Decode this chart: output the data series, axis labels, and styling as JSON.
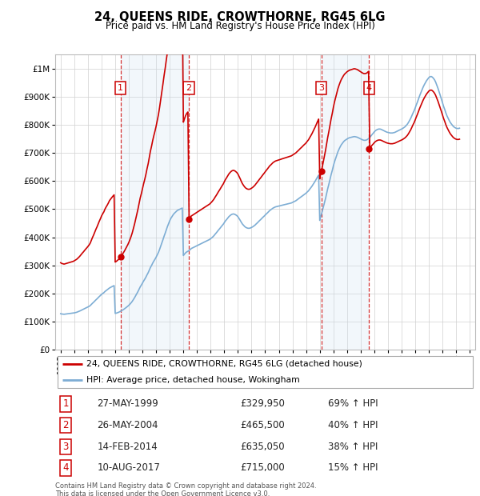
{
  "title": "24, QUEENS RIDE, CROWTHORNE, RG45 6LG",
  "subtitle": "Price paid vs. HM Land Registry's House Price Index (HPI)",
  "red_label": "24, QUEENS RIDE, CROWTHORNE, RG45 6LG (detached house)",
  "blue_label": "HPI: Average price, detached house, Wokingham",
  "footer": "Contains HM Land Registry data © Crown copyright and database right 2024.\nThis data is licensed under the Open Government Licence v3.0.",
  "ylim": [
    0,
    1050000
  ],
  "yticks": [
    0,
    100000,
    200000,
    300000,
    400000,
    500000,
    600000,
    700000,
    800000,
    900000,
    1000000
  ],
  "xlim_start": 1994.6,
  "xlim_end": 2025.4,
  "sale_dates": [
    1999.4,
    2004.4,
    2014.12,
    2017.61
  ],
  "sale_prices": [
    329950,
    465500,
    635050,
    715000
  ],
  "sale_labels": [
    "1",
    "2",
    "3",
    "4"
  ],
  "transactions": [
    {
      "num": "1",
      "date": "27-MAY-1999",
      "price": "£329,950",
      "change": "69% ↑ HPI"
    },
    {
      "num": "2",
      "date": "26-MAY-2004",
      "price": "£465,500",
      "change": "40% ↑ HPI"
    },
    {
      "num": "3",
      "date": "14-FEB-2014",
      "price": "£635,050",
      "change": "38% ↑ HPI"
    },
    {
      "num": "4",
      "date": "10-AUG-2017",
      "price": "£715,000",
      "change": "15% ↑ HPI"
    }
  ],
  "hpi_years": [
    1995.0,
    1995.08,
    1995.17,
    1995.25,
    1995.33,
    1995.42,
    1995.5,
    1995.58,
    1995.67,
    1995.75,
    1995.83,
    1995.92,
    1996.0,
    1996.08,
    1996.17,
    1996.25,
    1996.33,
    1996.42,
    1996.5,
    1996.58,
    1996.67,
    1996.75,
    1996.83,
    1996.92,
    1997.0,
    1997.08,
    1997.17,
    1997.25,
    1997.33,
    1997.42,
    1997.5,
    1997.58,
    1997.67,
    1997.75,
    1997.83,
    1997.92,
    1998.0,
    1998.08,
    1998.17,
    1998.25,
    1998.33,
    1998.42,
    1998.5,
    1998.58,
    1998.67,
    1998.75,
    1998.83,
    1998.92,
    1999.0,
    1999.08,
    1999.17,
    1999.25,
    1999.33,
    1999.42,
    1999.5,
    1999.58,
    1999.67,
    1999.75,
    1999.83,
    1999.92,
    2000.0,
    2000.08,
    2000.17,
    2000.25,
    2000.33,
    2000.42,
    2000.5,
    2000.58,
    2000.67,
    2000.75,
    2000.83,
    2000.92,
    2001.0,
    2001.08,
    2001.17,
    2001.25,
    2001.33,
    2001.42,
    2001.5,
    2001.58,
    2001.67,
    2001.75,
    2001.83,
    2001.92,
    2002.0,
    2002.08,
    2002.17,
    2002.25,
    2002.33,
    2002.42,
    2002.5,
    2002.58,
    2002.67,
    2002.75,
    2002.83,
    2002.92,
    2003.0,
    2003.08,
    2003.17,
    2003.25,
    2003.33,
    2003.42,
    2003.5,
    2003.58,
    2003.67,
    2003.75,
    2003.83,
    2003.92,
    2004.0,
    2004.08,
    2004.17,
    2004.25,
    2004.33,
    2004.42,
    2004.5,
    2004.58,
    2004.67,
    2004.75,
    2004.83,
    2004.92,
    2005.0,
    2005.08,
    2005.17,
    2005.25,
    2005.33,
    2005.42,
    2005.5,
    2005.58,
    2005.67,
    2005.75,
    2005.83,
    2005.92,
    2006.0,
    2006.08,
    2006.17,
    2006.25,
    2006.33,
    2006.42,
    2006.5,
    2006.58,
    2006.67,
    2006.75,
    2006.83,
    2006.92,
    2007.0,
    2007.08,
    2007.17,
    2007.25,
    2007.33,
    2007.42,
    2007.5,
    2007.58,
    2007.67,
    2007.75,
    2007.83,
    2007.92,
    2008.0,
    2008.08,
    2008.17,
    2008.25,
    2008.33,
    2008.42,
    2008.5,
    2008.58,
    2008.67,
    2008.75,
    2008.83,
    2008.92,
    2009.0,
    2009.08,
    2009.17,
    2009.25,
    2009.33,
    2009.42,
    2009.5,
    2009.58,
    2009.67,
    2009.75,
    2009.83,
    2009.92,
    2010.0,
    2010.08,
    2010.17,
    2010.25,
    2010.33,
    2010.42,
    2010.5,
    2010.58,
    2010.67,
    2010.75,
    2010.83,
    2010.92,
    2011.0,
    2011.08,
    2011.17,
    2011.25,
    2011.33,
    2011.42,
    2011.5,
    2011.58,
    2011.67,
    2011.75,
    2011.83,
    2011.92,
    2012.0,
    2012.08,
    2012.17,
    2012.25,
    2012.33,
    2012.42,
    2012.5,
    2012.58,
    2012.67,
    2012.75,
    2012.83,
    2012.92,
    2013.0,
    2013.08,
    2013.17,
    2013.25,
    2013.33,
    2013.42,
    2013.5,
    2013.58,
    2013.67,
    2013.75,
    2013.83,
    2013.92,
    2014.0,
    2014.08,
    2014.17,
    2014.25,
    2014.33,
    2014.42,
    2014.5,
    2014.58,
    2014.67,
    2014.75,
    2014.83,
    2014.92,
    2015.0,
    2015.08,
    2015.17,
    2015.25,
    2015.33,
    2015.42,
    2015.5,
    2015.58,
    2015.67,
    2015.75,
    2015.83,
    2015.92,
    2016.0,
    2016.08,
    2016.17,
    2016.25,
    2016.33,
    2016.42,
    2016.5,
    2016.58,
    2016.67,
    2016.75,
    2016.83,
    2016.92,
    2017.0,
    2017.08,
    2017.17,
    2017.25,
    2017.33,
    2017.42,
    2017.5,
    2017.58,
    2017.67,
    2017.75,
    2017.83,
    2017.92,
    2018.0,
    2018.08,
    2018.17,
    2018.25,
    2018.33,
    2018.42,
    2018.5,
    2018.58,
    2018.67,
    2018.75,
    2018.83,
    2018.92,
    2019.0,
    2019.08,
    2019.17,
    2019.25,
    2019.33,
    2019.42,
    2019.5,
    2019.58,
    2019.67,
    2019.75,
    2019.83,
    2019.92,
    2020.0,
    2020.08,
    2020.17,
    2020.25,
    2020.33,
    2020.42,
    2020.5,
    2020.58,
    2020.67,
    2020.75,
    2020.83,
    2020.92,
    2021.0,
    2021.08,
    2021.17,
    2021.25,
    2021.33,
    2021.42,
    2021.5,
    2021.58,
    2021.67,
    2021.75,
    2021.83,
    2021.92,
    2022.0,
    2022.08,
    2022.17,
    2022.25,
    2022.33,
    2022.42,
    2022.5,
    2022.58,
    2022.67,
    2022.75,
    2022.83,
    2022.92,
    2023.0,
    2023.08,
    2023.17,
    2023.25,
    2023.33,
    2023.42,
    2023.5,
    2023.58,
    2023.67,
    2023.75,
    2023.83,
    2023.92,
    2024.0,
    2024.08,
    2024.17,
    2024.25
  ],
  "hpi_values": [
    128000,
    127000,
    126500,
    126000,
    126500,
    127000,
    127500,
    128000,
    128500,
    129000,
    129500,
    130000,
    131000,
    132000,
    133000,
    134500,
    136000,
    138000,
    140000,
    142000,
    144000,
    146000,
    148000,
    150000,
    152000,
    154000,
    157000,
    161000,
    165000,
    169000,
    173000,
    177000,
    181000,
    185000,
    189000,
    193000,
    197000,
    200000,
    203000,
    207000,
    210000,
    213000,
    216000,
    219500,
    222000,
    224000,
    226000,
    228000,
    129000,
    130000,
    131500,
    133000,
    135000,
    137000,
    139500,
    142000,
    145000,
    148000,
    151000,
    154500,
    158000,
    162000,
    167000,
    172000,
    178000,
    185000,
    192000,
    199000,
    207000,
    215000,
    223000,
    230000,
    237000,
    244000,
    251000,
    258000,
    266000,
    274000,
    283000,
    292000,
    300000,
    308000,
    315000,
    322000,
    329000,
    337000,
    346000,
    356000,
    367000,
    379000,
    391000,
    403000,
    415000,
    427000,
    438000,
    449000,
    459000,
    467000,
    474000,
    480000,
    485000,
    489000,
    493000,
    496000,
    498000,
    500000,
    502000,
    504000,
    335000,
    340000,
    345000,
    348000,
    350000,
    353000,
    356000,
    360000,
    362000,
    364000,
    366000,
    368000,
    370000,
    372000,
    374000,
    376000,
    378000,
    380000,
    382000,
    384000,
    386000,
    388000,
    390000,
    392000,
    395000,
    398000,
    402000,
    406000,
    411000,
    416000,
    421000,
    426000,
    431000,
    436000,
    441000,
    446000,
    452000,
    458000,
    463000,
    468000,
    473000,
    477000,
    480000,
    482000,
    483000,
    482000,
    480000,
    477000,
    473000,
    467000,
    460000,
    453000,
    447000,
    442000,
    438000,
    435000,
    433000,
    432000,
    432000,
    433000,
    435000,
    437000,
    440000,
    443000,
    447000,
    451000,
    455000,
    459000,
    463000,
    467000,
    471000,
    475000,
    479000,
    483000,
    487000,
    491000,
    495000,
    498000,
    501000,
    504000,
    506000,
    508000,
    509000,
    510000,
    511000,
    512000,
    513000,
    514000,
    515000,
    516000,
    517000,
    518000,
    519000,
    520000,
    521000,
    522000,
    524000,
    526000,
    528000,
    530000,
    533000,
    536000,
    539000,
    542000,
    545000,
    548000,
    551000,
    554000,
    557000,
    561000,
    565000,
    570000,
    575000,
    581000,
    587000,
    593000,
    600000,
    607000,
    614000,
    621000,
    460000,
    475000,
    490000,
    505000,
    520000,
    537000,
    555000,
    572000,
    589000,
    606000,
    622000,
    638000,
    654000,
    668000,
    681000,
    693000,
    704000,
    714000,
    722000,
    729000,
    735000,
    740000,
    744000,
    747000,
    750000,
    752000,
    754000,
    755000,
    756000,
    757000,
    758000,
    758000,
    757000,
    756000,
    754000,
    752000,
    750000,
    748000,
    746000,
    745000,
    745000,
    746000,
    748000,
    751000,
    755000,
    760000,
    765000,
    770000,
    775000,
    779000,
    782000,
    784000,
    785000,
    785000,
    784000,
    782000,
    780000,
    778000,
    776000,
    774000,
    773000,
    772000,
    771000,
    771000,
    771000,
    772000,
    773000,
    775000,
    777000,
    779000,
    781000,
    783000,
    785000,
    787000,
    790000,
    793000,
    797000,
    802000,
    808000,
    815000,
    823000,
    832000,
    841000,
    850000,
    860000,
    871000,
    882000,
    893000,
    904000,
    915000,
    925000,
    934000,
    943000,
    950000,
    957000,
    963000,
    968000,
    971000,
    972000,
    970000,
    966000,
    960000,
    952000,
    942000,
    930000,
    918000,
    905000,
    892000,
    879000,
    866000,
    854000,
    842000,
    832000,
    823000,
    815000,
    808000,
    802000,
    797000,
    793000,
    790000,
    788000,
    787000,
    787000,
    788000
  ]
}
